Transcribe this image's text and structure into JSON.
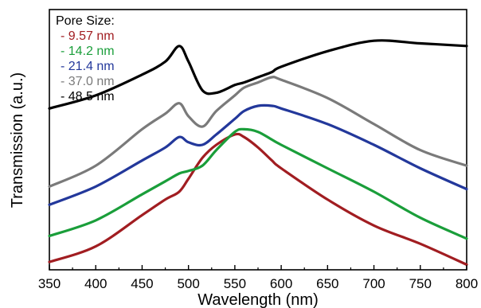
{
  "chart_data": {
    "type": "line",
    "xlabel": "Wavelength (nm)",
    "ylabel": "Transmission (a.u.)",
    "xlim": [
      350,
      800
    ],
    "ylim": [
      0,
      1
    ],
    "x_ticks": [
      "350",
      "400",
      "450",
      "500",
      "550",
      "600",
      "650",
      "700",
      "750",
      "800"
    ],
    "y_ticks_shown": false,
    "grid": false,
    "legend": {
      "title": "Pore Size:",
      "placement": "top-left",
      "entries": [
        {
          "label": "- 9.57 nm",
          "color": "#a11d21"
        },
        {
          "label": "- 14.2 nm",
          "color": "#1a9e3a"
        },
        {
          "label": "- 21.4 nm",
          "color": "#23389b"
        },
        {
          "label": "- 37.0 nm",
          "color": "#7a7a7a"
        },
        {
          "label": "- 48.5 nm",
          "color": "#000000"
        }
      ]
    },
    "x": [
      350,
      400,
      450,
      475,
      490,
      500,
      515,
      530,
      550,
      560,
      575,
      590,
      600,
      650,
      700,
      750,
      800
    ],
    "series": [
      {
        "name": "9.57 nm",
        "color": "#a11d21",
        "values": [
          0.03,
          0.09,
          0.21,
          0.27,
          0.3,
          0.35,
          0.43,
          0.48,
          0.52,
          0.51,
          0.47,
          0.42,
          0.39,
          0.27,
          0.17,
          0.1,
          0.02
        ]
      },
      {
        "name": "14.2 nm",
        "color": "#1a9e3a",
        "values": [
          0.13,
          0.19,
          0.29,
          0.34,
          0.37,
          0.38,
          0.4,
          0.46,
          0.53,
          0.54,
          0.53,
          0.5,
          0.48,
          0.39,
          0.3,
          0.2,
          0.12
        ]
      },
      {
        "name": "21.4 nm",
        "color": "#23389b",
        "values": [
          0.25,
          0.32,
          0.42,
          0.47,
          0.51,
          0.49,
          0.48,
          0.52,
          0.58,
          0.61,
          0.63,
          0.63,
          0.62,
          0.56,
          0.48,
          0.39,
          0.31
        ]
      },
      {
        "name": "37.0 nm",
        "color": "#7a7a7a",
        "values": [
          0.32,
          0.4,
          0.54,
          0.6,
          0.64,
          0.59,
          0.55,
          0.61,
          0.67,
          0.7,
          0.72,
          0.74,
          0.73,
          0.66,
          0.56,
          0.46,
          0.4
        ]
      },
      {
        "name": "48.5 nm",
        "color": "#000000",
        "values": [
          0.62,
          0.67,
          0.75,
          0.8,
          0.86,
          0.8,
          0.69,
          0.68,
          0.71,
          0.72,
          0.74,
          0.76,
          0.78,
          0.84,
          0.88,
          0.87,
          0.86
        ]
      }
    ]
  }
}
